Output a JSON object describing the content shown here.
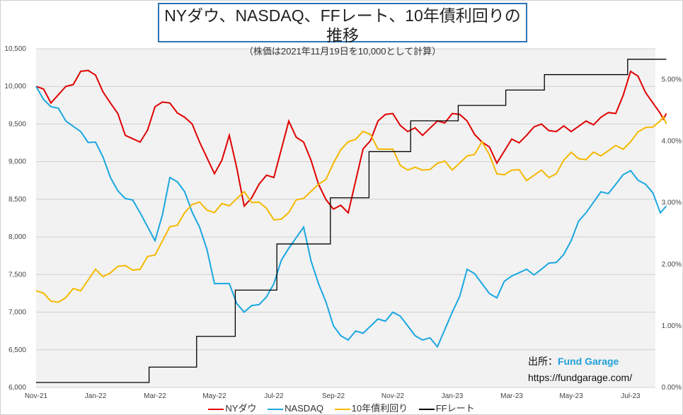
{
  "chart_data": {
    "type": "line",
    "title": "NYダウ、NASDAQ、FFレート、10年債利回りの推移",
    "subtitle": "（株価は2021年11月19日を10,000として計算）",
    "x_ticks": [
      "Nov-21",
      "Jan-22",
      "Mar-22",
      "May-22",
      "Jul-22",
      "Sep-22",
      "Nov-22",
      "Jan-23",
      "Mar-23",
      "May-23",
      "Jul-23"
    ],
    "y_left": {
      "range": [
        6000,
        10500
      ],
      "ticks": [
        "6,000",
        "6,500",
        "7,000",
        "7,500",
        "8,000",
        "8,500",
        "9,000",
        "9,500",
        "10,000",
        "10,500"
      ]
    },
    "y_right": {
      "range": [
        0,
        5.5
      ],
      "ticks": [
        "0.00%",
        "1.00%",
        "2.00%",
        "3.00%",
        "4.00%",
        "5.00%"
      ]
    },
    "x_months_from_nov21": [
      0,
      0.5,
      1,
      1.5,
      2,
      2.5,
      3,
      3.5,
      4,
      4.5,
      5,
      5.5,
      6,
      6.5,
      7,
      7.5,
      8,
      8.5,
      9,
      9.5,
      10,
      10.5,
      11,
      11.5,
      12,
      12.5,
      13,
      13.5,
      14,
      14.5,
      15,
      15.5,
      16,
      16.5,
      17,
      17.5,
      18,
      18.5,
      19,
      19.5,
      20,
      20.5,
      21,
      21.2
    ],
    "series": [
      {
        "name": "NYダウ",
        "axis": "left",
        "color": "#e00000",
        "values": [
          10000,
          9780,
          10000,
          10200,
          10150,
          9780,
          9350,
          9260,
          9730,
          9780,
          9590,
          9260,
          8840,
          9350,
          8410,
          8700,
          8790,
          9540,
          9260,
          8700,
          8370,
          8320,
          9170,
          9540,
          9640,
          9400,
          9350,
          9540,
          9640,
          9540,
          9260,
          8980,
          9300,
          9350,
          9500,
          9400,
          9400,
          9540,
          9590,
          9640,
          10200,
          9920,
          9640,
          9640
        ]
      },
      {
        "name": "NASDAQ",
        "axis": "left",
        "color": "#1aa7e0",
        "values": [
          10000,
          9730,
          9540,
          9400,
          9260,
          8790,
          8510,
          8320,
          7950,
          8790,
          8600,
          8130,
          7380,
          7380,
          7000,
          7100,
          7380,
          7850,
          8130,
          7380,
          6820,
          6630,
          6720,
          6910,
          7000,
          6820,
          6630,
          6540,
          7000,
          7570,
          7380,
          7190,
          7480,
          7570,
          7570,
          7660,
          7950,
          8320,
          8600,
          8700,
          8880,
          8700,
          8320,
          8410
        ]
      },
      {
        "name": "10年債利回り",
        "axis": "right",
        "color": "#f5b800",
        "values": [
          1.57,
          1.4,
          1.46,
          1.57,
          1.92,
          1.86,
          1.98,
          1.92,
          2.15,
          2.61,
          2.84,
          3.01,
          2.84,
          2.95,
          3.18,
          3.01,
          2.72,
          2.84,
          3.07,
          3.3,
          3.64,
          3.99,
          4.16,
          3.87,
          3.87,
          3.53,
          3.53,
          3.64,
          3.53,
          3.76,
          3.99,
          3.47,
          3.53,
          3.36,
          3.53,
          3.47,
          3.82,
          3.7,
          3.76,
          3.93,
          3.99,
          4.22,
          4.33,
          4.28
        ]
      },
      {
        "name": "FFレート",
        "axis": "right",
        "color": "#000000",
        "step": true,
        "x": [
          0,
          3.8,
          5.4,
          6.7,
          8.1,
          9.9,
          11.2,
          12.6,
          14.2,
          15.8,
          17.1,
          19.9,
          21.2
        ],
        "values": [
          0.08,
          0.33,
          0.83,
          1.58,
          2.33,
          3.08,
          3.83,
          4.33,
          4.58,
          4.83,
          5.08,
          5.33,
          5.33
        ]
      }
    ],
    "grid": true,
    "legend": "bottom"
  },
  "source": {
    "label": "出所：",
    "name": "Fund Garage",
    "url": "https://fundgarage.com/"
  }
}
